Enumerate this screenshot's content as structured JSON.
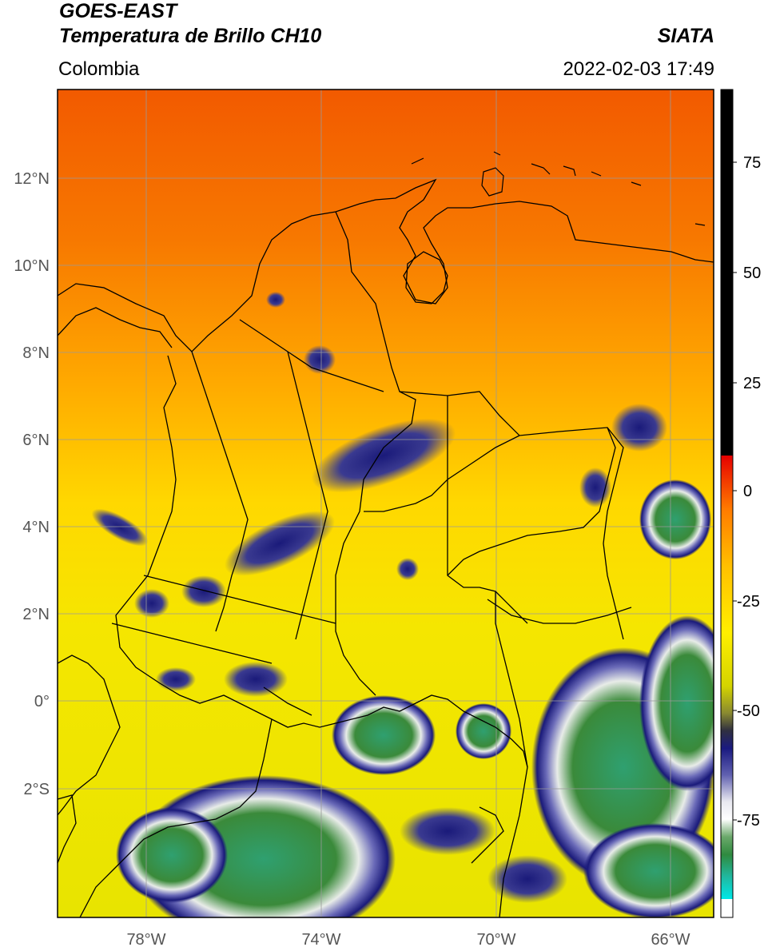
{
  "header": {
    "satellite": "GOES-EAST",
    "product": "Temperatura de Brillo CH10",
    "agency": "SIATA",
    "region": "Colombia",
    "timestamp": "2022-02-03 17:49"
  },
  "map": {
    "lon_labels": [
      "78°W",
      "74°W",
      "70°W",
      "66°W"
    ],
    "lat_labels": [
      "12°N",
      "10°N",
      "8°N",
      "6°N",
      "4°N",
      "2°N",
      "0°",
      "2°S"
    ],
    "lon_values": [
      -78,
      -74,
      -70,
      -66
    ],
    "lat_values": [
      12,
      10,
      8,
      6,
      4,
      2,
      0,
      -2
    ],
    "lon_range": [
      -80,
      -65
    ],
    "lat_range": [
      -5,
      14
    ],
    "gridlines": true
  },
  "colorbar": {
    "labels": [
      "75",
      "50",
      "25",
      "0",
      "-25",
      "-50",
      "-75"
    ],
    "values": [
      75,
      50,
      25,
      0,
      -25,
      -50,
      -75
    ],
    "range": [
      -95,
      90
    ],
    "colors": {
      "black": "#000000",
      "red": "#e60000",
      "orange": "#ff8c00",
      "yellow": "#ffe600",
      "olive": "#a8a800",
      "navy": "#1a1a7a",
      "white": "#ffffff",
      "green": "#3a8a3a",
      "teal": "#20c8b0",
      "cyan": "#00e5e5"
    }
  }
}
